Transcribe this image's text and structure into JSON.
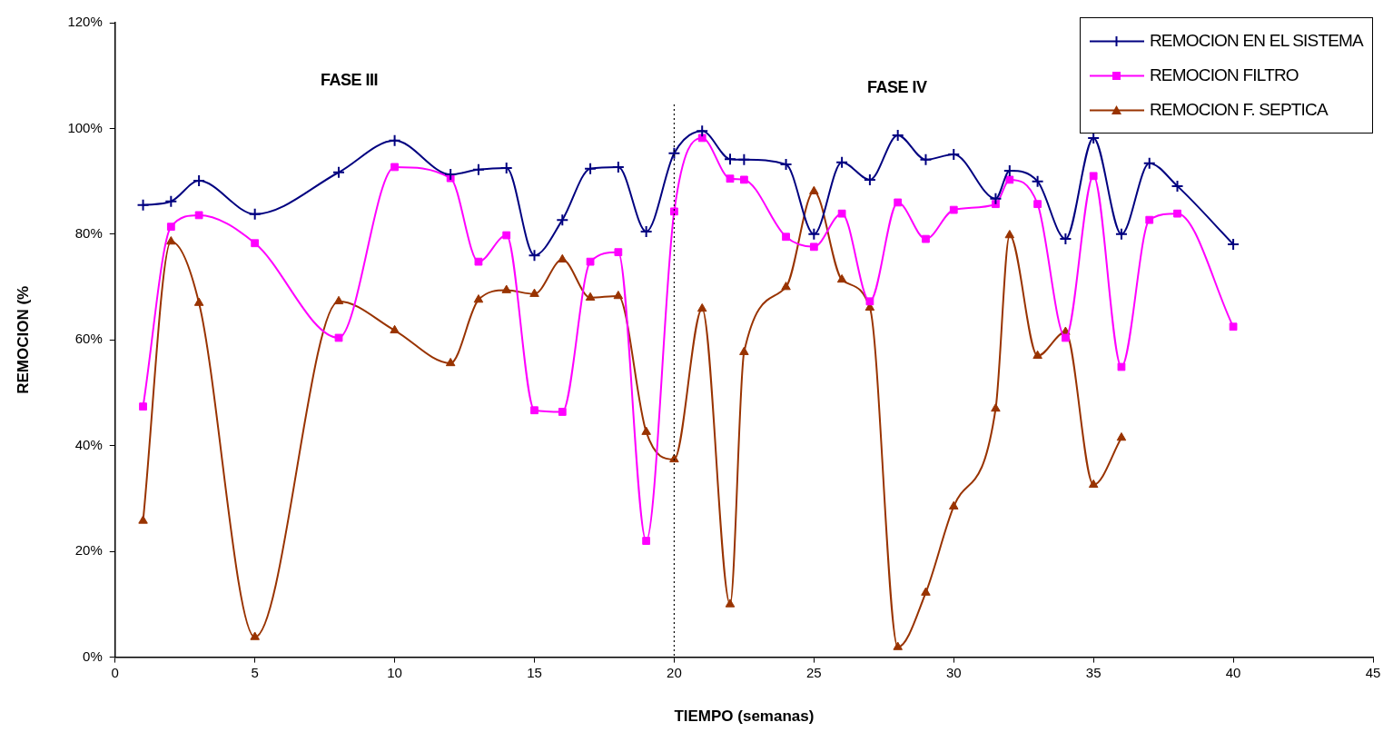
{
  "chart_data": {
    "type": "line",
    "xlabel": "TIEMPO (semanas)",
    "ylabel": "REMOCION (%",
    "xlim": [
      0,
      45
    ],
    "xticks": [
      0,
      5,
      10,
      15,
      20,
      25,
      30,
      35,
      40,
      45
    ],
    "ylim": [
      0,
      120
    ],
    "yticks": [
      {
        "value": 0,
        "label": "0%"
      },
      {
        "value": 20,
        "label": "20%"
      },
      {
        "value": 40,
        "label": "40%"
      },
      {
        "value": 60,
        "label": "60%"
      },
      {
        "value": 80,
        "label": "80%"
      },
      {
        "value": 100,
        "label": "100%"
      },
      {
        "value": 120,
        "label": "120%"
      }
    ],
    "grid": false,
    "legend": "top right",
    "line_style": "solid",
    "ref_lines": [
      {
        "axis": "x",
        "value": 20,
        "color": "#000000",
        "line_style": "dotted"
      }
    ],
    "annotations": [
      "FASE III",
      "FASE IV"
    ],
    "series": [
      {
        "name": "REMOCION EN EL SISTEMA",
        "color": "#000080",
        "marker": "cross",
        "x": [
          1,
          2,
          3,
          5,
          8,
          10,
          12,
          13,
          14,
          15,
          16,
          17,
          18,
          19,
          20,
          21,
          22,
          22.5,
          24,
          25,
          26,
          27,
          28,
          29,
          30,
          31.5,
          32,
          33,
          34,
          35,
          36,
          37,
          38,
          40
        ],
        "values": [
          85.5,
          86.2,
          90.1,
          83.8,
          91.7,
          97.7,
          91.3,
          92.2,
          92.5,
          76,
          82.7,
          92.4,
          92.7,
          80.5,
          95.3,
          99.5,
          94.2,
          94.1,
          93.2,
          80,
          93.6,
          90.3,
          98.7,
          94.1,
          95.1,
          86.7,
          92,
          90,
          79.1,
          98.2,
          80,
          93.4,
          89.1,
          78.1
        ]
      },
      {
        "name": "REMOCION FILTRO",
        "color": "#ff00ff",
        "marker": "square",
        "x": [
          1,
          2,
          3,
          5,
          8,
          10,
          12,
          13,
          14,
          15,
          16,
          17,
          18,
          19,
          20,
          21,
          22,
          22.5,
          24,
          25,
          26,
          27,
          28,
          29,
          30,
          31.5,
          32,
          33,
          34,
          35,
          36,
          37,
          38,
          40
        ],
        "values": [
          47.4,
          81.4,
          83.6,
          78.3,
          60.4,
          92.7,
          90.6,
          74.8,
          79.8,
          46.7,
          46.4,
          74.8,
          76.6,
          22,
          84.3,
          98.2,
          90.5,
          90.3,
          79.5,
          77.6,
          83.9,
          67.3,
          86,
          79.1,
          84.6,
          85.7,
          90.3,
          85.7,
          60.4,
          91,
          54.9,
          82.7,
          83.9,
          62.5
        ]
      },
      {
        "name": "REMOCION F. SEPTICA",
        "color": "#993300",
        "marker": "triangle",
        "x": [
          1,
          2,
          3,
          5,
          8,
          10,
          12,
          13,
          14,
          15,
          16,
          17,
          18,
          19,
          20,
          21,
          22,
          22.5,
          24,
          25,
          26,
          27,
          28,
          29,
          30,
          31.5,
          32,
          33,
          34,
          35,
          36
        ],
        "values": [
          25.8,
          78.6,
          67,
          3.8,
          67.3,
          61.8,
          55.6,
          67.6,
          69.4,
          68.7,
          75.2,
          68,
          68.3,
          42.6,
          37.4,
          65.9,
          10,
          57.7,
          70,
          88.1,
          71.4,
          66.1,
          1.9,
          12.2,
          28.5,
          47,
          79.8,
          57,
          61.5,
          32.6,
          41.5
        ]
      }
    ]
  }
}
